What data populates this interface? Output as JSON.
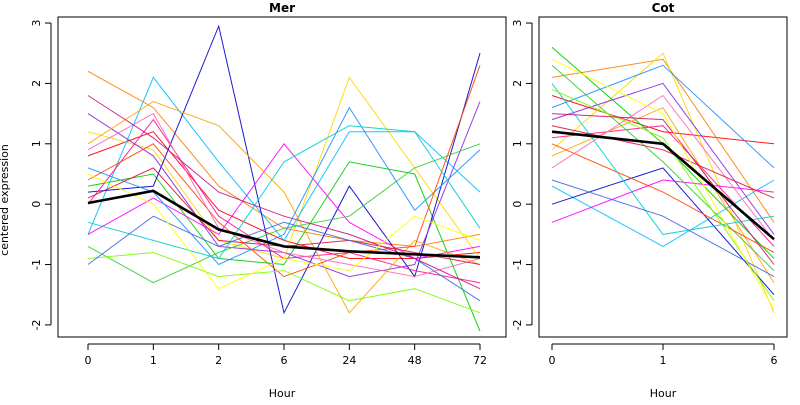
{
  "chart_data": [
    {
      "type": "line",
      "title": "Mer",
      "xlabel": "Hour",
      "ylabel": "centered expression",
      "categories": [
        "0",
        "1",
        "2",
        "6",
        "24",
        "48",
        "72"
      ],
      "yticks": [
        -2,
        -1,
        0,
        1,
        2,
        3
      ],
      "ylim": [
        -2.2,
        3.1
      ],
      "grid": false,
      "legend": "none",
      "mean_series": {
        "values": [
          0.02,
          0.22,
          -0.42,
          -0.7,
          -0.78,
          -0.83,
          -0.88
        ],
        "color": "#000000"
      },
      "gene_series": [
        {
          "color": "#ff0000",
          "values": [
            0.8,
            1.2,
            -0.1,
            -0.6,
            -0.9,
            -0.9,
            -0.8
          ]
        },
        {
          "color": "#ff7f00",
          "values": [
            2.2,
            1.6,
            0.3,
            -0.4,
            -0.6,
            -0.7,
            -0.5
          ]
        },
        {
          "color": "#ffd700",
          "values": [
            1.2,
            0.9,
            -0.6,
            -0.9,
            2.1,
            0.6,
            -0.9
          ]
        },
        {
          "color": "#00cd00",
          "values": [
            0.3,
            0.5,
            -0.9,
            -1.0,
            0.7,
            0.5,
            -2.1
          ]
        },
        {
          "color": "#00bfff",
          "values": [
            -0.5,
            2.1,
            0.7,
            -0.6,
            1.2,
            1.2,
            0.2
          ]
        },
        {
          "color": "#0000cd",
          "values": [
            0.2,
            0.3,
            2.95,
            -1.8,
            0.3,
            -1.2,
            2.5
          ]
        },
        {
          "color": "#8a2be2",
          "values": [
            1.5,
            0.8,
            -0.7,
            -0.8,
            -1.2,
            -1.0,
            1.7
          ]
        },
        {
          "color": "#ff1493",
          "values": [
            0.0,
            1.4,
            -0.2,
            -0.9,
            -0.8,
            -1.1,
            -1.3
          ]
        },
        {
          "color": "#ff00ff",
          "values": [
            -0.5,
            0.1,
            -0.5,
            1.0,
            -0.3,
            -0.9,
            -0.7
          ]
        },
        {
          "color": "#ffa500",
          "values": [
            1.0,
            1.7,
            1.3,
            0.2,
            -1.8,
            -0.6,
            -1.0
          ]
        },
        {
          "color": "#32cd32",
          "values": [
            -0.7,
            -1.3,
            -0.8,
            -0.4,
            -0.2,
            0.6,
            1.0
          ]
        },
        {
          "color": "#1e90ff",
          "values": [
            0.6,
            0.2,
            -1.0,
            -0.5,
            1.6,
            -0.1,
            0.9
          ]
        },
        {
          "color": "#ff4500",
          "values": [
            0.4,
            1.0,
            -0.3,
            -1.2,
            -0.8,
            -0.7,
            2.3
          ]
        },
        {
          "color": "#00ced1",
          "values": [
            -0.3,
            -0.6,
            -0.9,
            0.7,
            1.3,
            1.2,
            -0.4
          ]
        },
        {
          "color": "#ff69b4",
          "values": [
            0.9,
            1.5,
            -0.4,
            -0.8,
            -1.0,
            -1.2,
            -0.9
          ]
        },
        {
          "color": "#7cfc00",
          "values": [
            -0.9,
            -0.8,
            -1.2,
            -1.1,
            -1.6,
            -1.4,
            -1.8
          ]
        },
        {
          "color": "#dc143c",
          "values": [
            0.1,
            0.6,
            -0.6,
            -0.7,
            -0.6,
            -0.8,
            -1.0
          ]
        },
        {
          "color": "#4169e1",
          "values": [
            -1.0,
            -0.2,
            -0.7,
            -0.3,
            -0.6,
            -0.9,
            -1.6
          ]
        },
        {
          "color": "#c71585",
          "values": [
            1.8,
            1.1,
            0.2,
            -0.2,
            -0.5,
            -0.9,
            -1.4
          ]
        },
        {
          "color": "#ffff00",
          "values": [
            0.5,
            0.0,
            -1.4,
            -0.9,
            -1.1,
            -0.2,
            -0.6
          ]
        }
      ]
    },
    {
      "type": "line",
      "title": "Cot",
      "xlabel": "Hour",
      "ylabel": "",
      "categories": [
        "0",
        "1",
        "6"
      ],
      "yticks": [
        -2,
        -1,
        0,
        1,
        2,
        3
      ],
      "ylim": [
        -2.2,
        3.1
      ],
      "grid": false,
      "legend": "none",
      "mean_series": {
        "values": [
          1.2,
          1.0,
          -0.58
        ],
        "color": "#000000"
      },
      "gene_series": [
        {
          "color": "#ff0000",
          "values": [
            1.8,
            1.2,
            1.0
          ]
        },
        {
          "color": "#ff7f00",
          "values": [
            2.1,
            2.4,
            -0.3
          ]
        },
        {
          "color": "#ffd700",
          "values": [
            0.9,
            2.5,
            -1.8
          ]
        },
        {
          "color": "#00cd00",
          "values": [
            2.6,
            1.0,
            -0.9
          ]
        },
        {
          "color": "#00bfff",
          "values": [
            0.3,
            -0.7,
            0.4
          ]
        },
        {
          "color": "#0000cd",
          "values": [
            0.0,
            0.6,
            -1.5
          ]
        },
        {
          "color": "#8a2be2",
          "values": [
            1.4,
            2.0,
            -0.5
          ]
        },
        {
          "color": "#ff1493",
          "values": [
            1.1,
            1.3,
            -0.7
          ]
        },
        {
          "color": "#ff00ff",
          "values": [
            -0.3,
            0.4,
            0.2
          ]
        },
        {
          "color": "#ffa500",
          "values": [
            0.8,
            1.6,
            -1.3
          ]
        },
        {
          "color": "#32cd32",
          "values": [
            2.3,
            0.7,
            -1.1
          ]
        },
        {
          "color": "#1e90ff",
          "values": [
            1.6,
            2.3,
            0.6
          ]
        },
        {
          "color": "#ff4500",
          "values": [
            1.0,
            0.2,
            -0.8
          ]
        },
        {
          "color": "#00ced1",
          "values": [
            2.0,
            -0.5,
            -0.2
          ]
        },
        {
          "color": "#ff69b4",
          "values": [
            0.6,
            1.8,
            -0.6
          ]
        },
        {
          "color": "#7cfc00",
          "values": [
            1.9,
            1.1,
            -1.6
          ]
        },
        {
          "color": "#dc143c",
          "values": [
            1.3,
            0.9,
            0.1
          ]
        },
        {
          "color": "#4169e1",
          "values": [
            0.4,
            -0.2,
            -1.2
          ]
        },
        {
          "color": "#c71585",
          "values": [
            1.5,
            1.4,
            -1.0
          ]
        },
        {
          "color": "#ffff00",
          "values": [
            2.4,
            1.5,
            -1.75
          ]
        }
      ]
    }
  ]
}
